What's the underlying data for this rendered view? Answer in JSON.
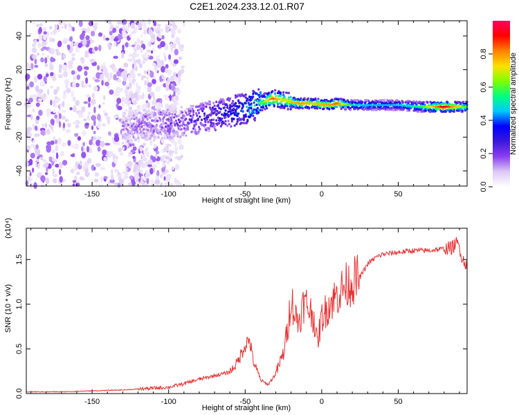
{
  "title": "C2E1.2024.233.12.01.R07",
  "chart_data": [
    {
      "type": "heatmap",
      "xlabel": "Height of straight line (km)",
      "ylabel": "Frequency (Hz)",
      "xlim": [
        -193,
        95
      ],
      "ylim": [
        -49,
        49
      ],
      "xticks": [
        -150,
        -100,
        -50,
        0,
        50
      ],
      "yticks": [
        -40,
        -20,
        0,
        20,
        40
      ],
      "colorbar": {
        "label": "Normalized spectral amplitude",
        "range": [
          0,
          1
        ],
        "ticks": [
          "0.0",
          "0.2",
          "0.4",
          "0.6",
          "0.8"
        ],
        "colormap": [
          "#ffffff",
          "#dcc8f5",
          "#8a3ff0",
          "#3a18d8",
          "#0000ff",
          "#00c8ff",
          "#00ff80",
          "#7fff00",
          "#ffe000",
          "#ff8000",
          "#ff0000",
          "#ff0060"
        ]
      },
      "ridge": [
        {
          "x": -128,
          "f": -13,
          "amp": 0.15
        },
        {
          "x": -110,
          "f": -13,
          "amp": 0.18
        },
        {
          "x": -100,
          "f": -12,
          "amp": 0.2
        },
        {
          "x": -90,
          "f": -11,
          "amp": 0.22
        },
        {
          "x": -80,
          "f": -9,
          "amp": 0.28
        },
        {
          "x": -70,
          "f": -7,
          "amp": 0.32
        },
        {
          "x": -60,
          "f": -5,
          "amp": 0.36
        },
        {
          "x": -50,
          "f": -3,
          "amp": 0.42
        },
        {
          "x": -40,
          "f": 0,
          "amp": 0.55
        },
        {
          "x": -32,
          "f": 3,
          "amp": 0.85
        },
        {
          "x": -25,
          "f": 2,
          "amp": 0.7
        },
        {
          "x": -15,
          "f": 0,
          "amp": 0.8
        },
        {
          "x": -5,
          "f": 0,
          "amp": 0.75
        },
        {
          "x": 5,
          "f": -1,
          "amp": 0.8
        },
        {
          "x": 10,
          "f": 0,
          "amp": 0.85
        },
        {
          "x": 20,
          "f": -1,
          "amp": 0.5
        },
        {
          "x": 35,
          "f": -1,
          "amp": 0.45
        },
        {
          "x": 50,
          "f": -1,
          "amp": 0.45
        },
        {
          "x": 65,
          "f": -2,
          "amp": 0.55
        },
        {
          "x": 80,
          "f": -2,
          "amp": 0.95
        },
        {
          "x": 94,
          "f": -2,
          "amp": 0.6
        }
      ]
    },
    {
      "type": "line",
      "xlabel": "Height of straight line (km)",
      "ylabel": "SNR (10 * v/v)",
      "yscale_label": "(x10⁴)",
      "xlim": [
        -193,
        95
      ],
      "ylim": [
        0,
        1.85
      ],
      "xticks": [
        -150,
        -100,
        -50,
        0,
        50
      ],
      "yticks": [
        "0.0",
        "0.5",
        "1.0",
        "1.5"
      ],
      "series": [
        {
          "color": "#e83030",
          "x": [
            -193,
            -170,
            -150,
            -130,
            -120,
            -110,
            -100,
            -90,
            -80,
            -70,
            -60,
            -55,
            -50,
            -47,
            -45,
            -40,
            -35,
            -30,
            -25,
            -22,
            -20,
            -18,
            -15,
            -12,
            -10,
            -5,
            -3,
            0,
            5,
            10,
            15,
            20,
            25,
            30,
            35,
            40,
            50,
            60,
            70,
            80,
            85,
            88,
            90,
            92,
            95
          ],
          "y": [
            0.02,
            0.02,
            0.03,
            0.04,
            0.05,
            0.06,
            0.07,
            0.11,
            0.16,
            0.2,
            0.24,
            0.35,
            0.55,
            0.6,
            0.38,
            0.15,
            0.1,
            0.22,
            0.45,
            0.75,
            1.1,
            0.9,
            0.8,
            1.0,
            1.0,
            0.85,
            0.55,
            0.85,
            1.0,
            1.1,
            1.2,
            1.25,
            1.3,
            1.45,
            1.52,
            1.56,
            1.58,
            1.6,
            1.6,
            1.62,
            1.63,
            1.68,
            1.65,
            1.5,
            1.45
          ]
        }
      ]
    }
  ]
}
